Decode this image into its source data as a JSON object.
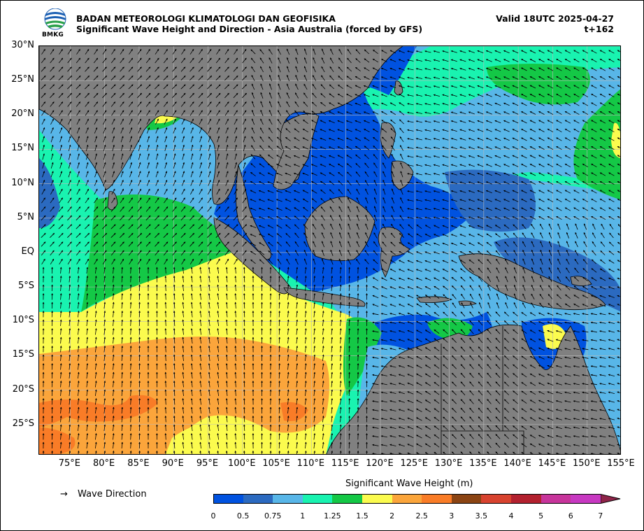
{
  "header": {
    "agency": "BADAN METEOROLOGI KLIMATOLOGI DAN GEOFISIKA",
    "product": "Significant Wave Height and Direction - Asia Australia (forced by GFS)",
    "valid": "Valid 18UTC 2025-04-27",
    "lead": "t+162",
    "logo_text": "BMKG"
  },
  "axes": {
    "lat_labels": [
      "30°N",
      "25°N",
      "20°N",
      "15°N",
      "10°N",
      "5°N",
      "EQ",
      "5°S",
      "10°S",
      "15°S",
      "20°S",
      "25°S"
    ],
    "lon_labels": [
      "75°E",
      "80°E",
      "85°E",
      "90°E",
      "95°E",
      "100°E",
      "105°E",
      "110°E",
      "115°E",
      "120°E",
      "125°E",
      "130°E",
      "135°E",
      "140°E",
      "145°E",
      "150°E",
      "155°E"
    ],
    "lat_range": [
      -29.5,
      30
    ],
    "lon_range": [
      70.5,
      155
    ]
  },
  "legend": {
    "wave_direction_symbol": "→",
    "wave_direction_label": "Wave Direction",
    "colorbar_title": "Significant Wave Height (m)",
    "ticks": [
      "0",
      "0.5",
      "0.75",
      "1",
      "1.25",
      "1.5",
      "2",
      "2.5",
      "3",
      "3.5",
      "4",
      "5",
      "6",
      "7"
    ],
    "colors": [
      "#0052e0",
      "#2b6ac0",
      "#58b6e8",
      "#19f3b0",
      "#14c846",
      "#fbfb4e",
      "#fba53b",
      "#f97c27",
      "#8b4413",
      "#d8432f",
      "#b3212f",
      "#c7349b",
      "#c738c1"
    ],
    "extend_color": "#8e2448"
  },
  "colors": {
    "land": "#808080",
    "coast": "#000000"
  }
}
